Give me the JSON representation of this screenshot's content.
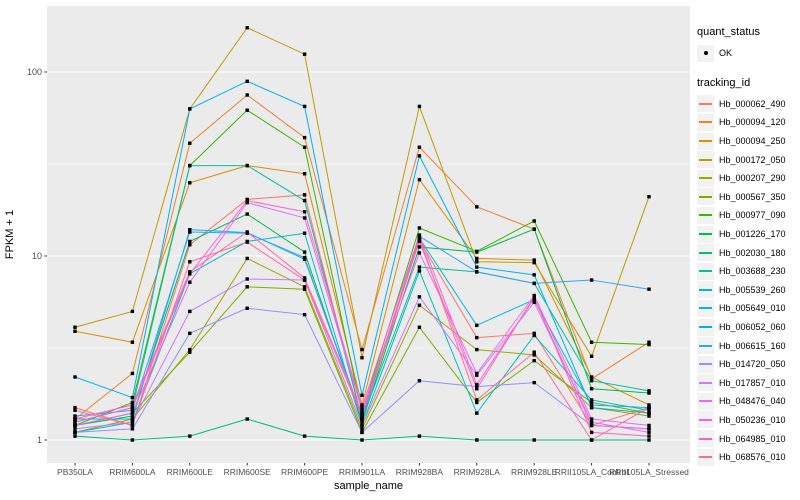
{
  "chart_data": {
    "type": "line",
    "title": "",
    "xlabel": "sample_name",
    "ylabel": "FPKM + 1",
    "y_scale": "log10",
    "y_ticks": [
      1,
      10,
      100
    ],
    "ylim": [
      0.75,
      230
    ],
    "grid": true,
    "legend_position": "right",
    "point_color": "#000000",
    "categories": [
      "PB350LA",
      "RRIM600LA",
      "RRIM600LE",
      "RRIM600SE",
      "RRIM600PE",
      "RRIM901LA",
      "RRIM928BA",
      "RRIM928LA",
      "RRIM928LE",
      "RRII105LA_Control",
      "RRII105LA_Stressed"
    ],
    "series": [
      {
        "name": "Hb_000062_490",
        "color": "#F8766D",
        "values": [
          1.5,
          1.2,
          11.5,
          20.3,
          21.5,
          1.3,
          12.2,
          3.6,
          3.8,
          1.2,
          1.5
        ]
      },
      {
        "name": "Hb_000094_120",
        "color": "#EA8331",
        "values": [
          1.3,
          2.3,
          41,
          75,
          44,
          3.1,
          39,
          18.5,
          14,
          2.15,
          3.4
        ]
      },
      {
        "name": "Hb_000094_250",
        "color": "#D89000",
        "values": [
          3.9,
          3.4,
          25,
          31,
          28,
          1.55,
          26,
          9.7,
          9.5,
          2.2,
          1.55
        ]
      },
      {
        "name": "Hb_000172_050",
        "color": "#C09B00",
        "values": [
          4.1,
          5.0,
          63,
          174,
          125,
          2.8,
          65,
          9.3,
          9.2,
          2.85,
          21
        ]
      },
      {
        "name": "Hb_000207_290",
        "color": "#A3A500",
        "values": [
          1.1,
          1.3,
          3.1,
          9.7,
          6.8,
          1.15,
          5.4,
          3.1,
          2.9,
          1.5,
          1.35
        ]
      },
      {
        "name": "Hb_000567_350",
        "color": "#7CAE00",
        "values": [
          1.2,
          1.4,
          3.0,
          6.8,
          6.6,
          1.1,
          4.1,
          1.6,
          2.7,
          1.6,
          1.4
        ]
      },
      {
        "name": "Hb_000977_090",
        "color": "#39B600",
        "values": [
          1.2,
          1.6,
          31,
          62,
          39,
          1.4,
          14.2,
          10.6,
          15.5,
          3.4,
          3.3
        ]
      },
      {
        "name": "Hb_001226_170",
        "color": "#00BB4E",
        "values": [
          1.2,
          1.35,
          12,
          16.9,
          10.5,
          1.25,
          11.2,
          10.5,
          14,
          1.9,
          1.8
        ]
      },
      {
        "name": "Hb_002030_180",
        "color": "#00BF7D",
        "values": [
          1.05,
          1.0,
          1.05,
          1.3,
          1.05,
          1.0,
          1.05,
          1.0,
          1.0,
          1.0,
          1.0
        ]
      },
      {
        "name": "Hb_003688_230",
        "color": "#00C1A3",
        "values": [
          1.25,
          1.5,
          31,
          31,
          20,
          1.3,
          8.7,
          8.2,
          7.1,
          2.1,
          1.85
        ]
      },
      {
        "name": "Hb_005539_260",
        "color": "#00BFC4",
        "values": [
          1.1,
          1.25,
          8.0,
          12.0,
          13.3,
          1.2,
          8.3,
          1.4,
          3.7,
          1.65,
          1.45
        ]
      },
      {
        "name": "Hb_005649_010",
        "color": "#00BAE0",
        "values": [
          1.3,
          1.3,
          13.9,
          13.4,
          9.6,
          1.35,
          12.5,
          4.2,
          5.8,
          1.55,
          1.5
        ]
      },
      {
        "name": "Hb_006052_060",
        "color": "#00B0F6",
        "values": [
          2.2,
          1.7,
          63,
          89,
          65,
          1.75,
          35,
          8.7,
          7.9,
          1.5,
          1.4
        ]
      },
      {
        "name": "Hb_006615_160",
        "color": "#35A2FF",
        "values": [
          1.35,
          1.45,
          13.5,
          13.3,
          9.8,
          1.3,
          12.8,
          8.2,
          7.1,
          7.4,
          6.6
        ]
      },
      {
        "name": "Hb_014720_050",
        "color": "#9590FF",
        "values": [
          1.1,
          1.15,
          3.8,
          5.2,
          4.8,
          1.1,
          2.1,
          1.95,
          2.05,
          1.2,
          1.15
        ]
      },
      {
        "name": "Hb_017857_010",
        "color": "#C77CFF",
        "values": [
          1.15,
          1.25,
          5.0,
          7.5,
          7.4,
          1.2,
          6.0,
          2.25,
          5.6,
          1.25,
          1.1
        ]
      },
      {
        "name": "Hb_048476_040",
        "color": "#E76BF3",
        "values": [
          1.2,
          1.4,
          7.2,
          19.5,
          16.1,
          1.45,
          10.4,
          2.3,
          6.1,
          1.3,
          1.2
        ]
      },
      {
        "name": "Hb_050236_010",
        "color": "#FA62DB",
        "values": [
          1.25,
          1.5,
          8.0,
          20.0,
          17.4,
          1.5,
          13.0,
          2.0,
          5.9,
          1.2,
          1.15
        ]
      },
      {
        "name": "Hb_064985_010",
        "color": "#FF62BC",
        "values": [
          1.3,
          1.55,
          8.2,
          13.5,
          7.6,
          1.4,
          12.0,
          1.9,
          6.0,
          1.1,
          1.05
        ]
      },
      {
        "name": "Hb_068576_010",
        "color": "#FF6A98",
        "values": [
          1.45,
          1.2,
          9.3,
          11.9,
          7.4,
          1.35,
          12.5,
          1.65,
          3.0,
          1.0,
          1.5
        ]
      }
    ]
  },
  "legend": {
    "quant_title": "quant_status",
    "quant_items": [
      {
        "label": "OK"
      }
    ],
    "tracking_title": "tracking_id"
  },
  "colors": {
    "panel_bg": "#EBEBEB",
    "grid": "#FFFFFF",
    "tick_text": "#4D4D4D",
    "axis_title": "#000000",
    "legend_key_bg": "#F2F2F2"
  }
}
